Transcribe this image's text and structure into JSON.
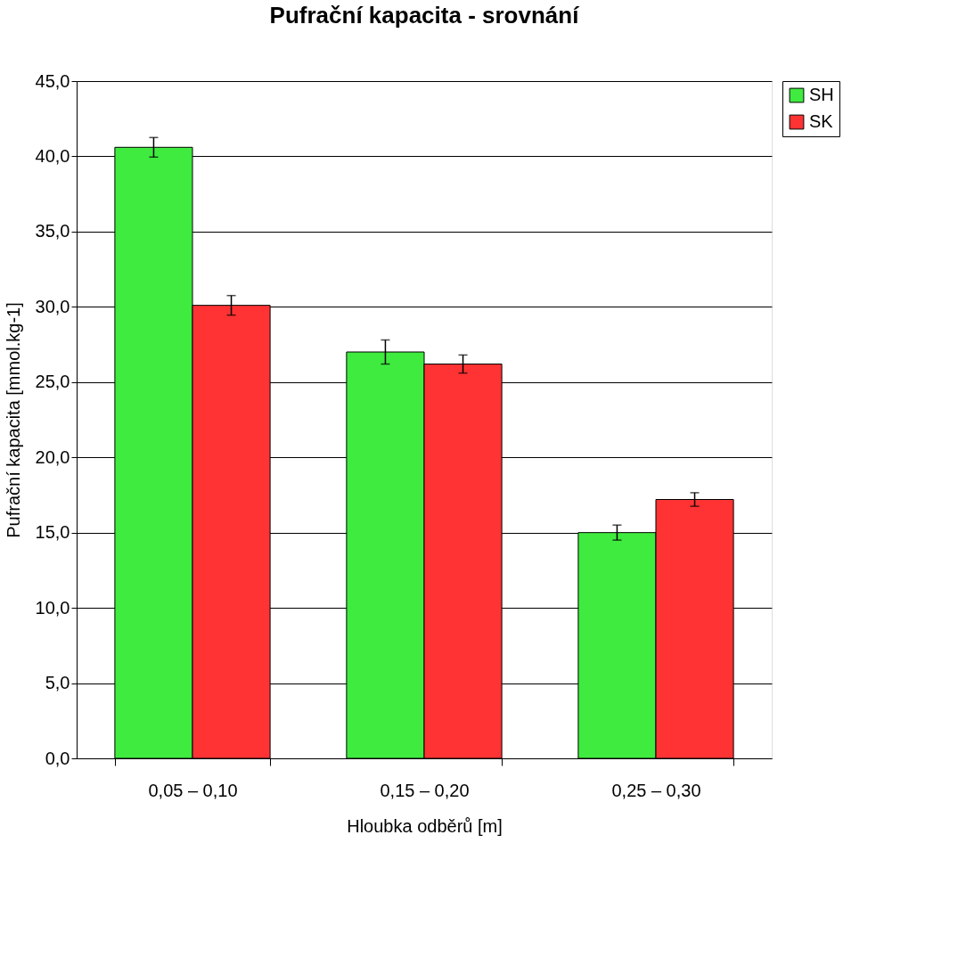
{
  "chart_data": {
    "type": "bar",
    "title": "Pufrační kapacita - srovnání",
    "xlabel": "Hloubka odběrů [m]",
    "ylabel": "Pufrační kapacita [mmol.kg-1]",
    "categories": [
      "0,05 – 0,10",
      "0,15 – 0,20",
      "0,25 – 0,30"
    ],
    "series": [
      {
        "name": "SH",
        "color": "#3feb3f",
        "values": [
          40.6,
          27.0,
          15.0
        ],
        "errors": [
          0.65,
          0.8,
          0.5
        ]
      },
      {
        "name": "SK",
        "color": "#ff3333",
        "values": [
          30.1,
          26.2,
          17.2
        ],
        "errors": [
          0.65,
          0.6,
          0.45
        ]
      }
    ],
    "ylim": [
      0,
      45
    ],
    "yticks": [
      {
        "value": 0,
        "label": "0,0"
      },
      {
        "value": 5,
        "label": "5,0"
      },
      {
        "value": 10,
        "label": "10,0"
      },
      {
        "value": 15,
        "label": "15,0"
      },
      {
        "value": 20,
        "label": "20,0"
      },
      {
        "value": 25,
        "label": "25,0"
      },
      {
        "value": 30,
        "label": "30,0"
      },
      {
        "value": 35,
        "label": "35,0"
      },
      {
        "value": 40,
        "label": "40,0"
      },
      {
        "value": 45,
        "label": "45,0"
      }
    ],
    "grid": "y",
    "legend": "right"
  }
}
